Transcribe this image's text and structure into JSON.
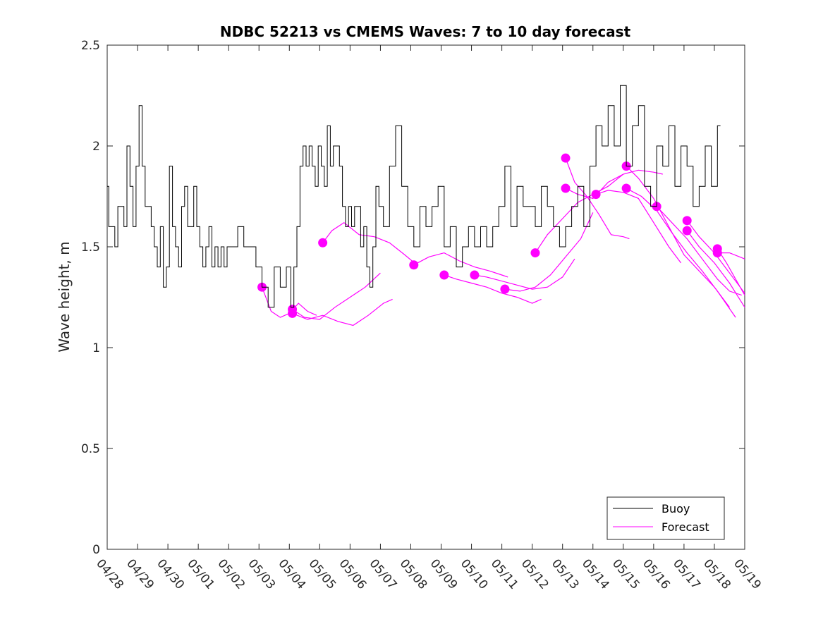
{
  "chart_data": {
    "type": "line",
    "title": "NDBC 52213 vs CMEMS Waves: 7 to 10 day forecast",
    "xlabel": "",
    "ylabel": "Wave height, m",
    "xlim": [
      "04/28",
      "05/19"
    ],
    "ylim": [
      0,
      2.5
    ],
    "x_tick_labels": [
      "04/28",
      "04/29",
      "04/30",
      "05/01",
      "05/02",
      "05/03",
      "05/04",
      "05/05",
      "05/06",
      "05/07",
      "05/08",
      "05/09",
      "05/10",
      "05/11",
      "05/12",
      "05/13",
      "05/14",
      "05/15",
      "05/16",
      "05/17",
      "05/18",
      "05/19"
    ],
    "y_ticks": [
      0,
      0.5,
      1,
      1.5,
      2,
      2.5
    ],
    "y_tick_labels": [
      "0",
      "0.5",
      "1",
      "1.5",
      "2",
      "2.5"
    ],
    "grid": false,
    "legend_position": "bottom-right",
    "colors": {
      "buoy": "#000000",
      "forecast": "#ff00ff"
    },
    "series": [
      {
        "name": "Buoy",
        "x_day_index": [
          0.0,
          0.1,
          0.2,
          0.3,
          0.4,
          0.5,
          0.6,
          0.7,
          0.8,
          0.9,
          1.0,
          1.1,
          1.2,
          1.3,
          1.4,
          1.5,
          1.6,
          1.7,
          1.8,
          1.9,
          2.0,
          2.1,
          2.2,
          2.3,
          2.4,
          2.5,
          2.6,
          2.7,
          2.8,
          2.9,
          3.0,
          3.1,
          3.2,
          3.3,
          3.4,
          3.5,
          3.6,
          3.7,
          3.8,
          3.9,
          4.0,
          4.2,
          4.4,
          4.6,
          4.8,
          5.0,
          5.2,
          5.4,
          5.6,
          5.8,
          6.0,
          6.1,
          6.2,
          6.3,
          6.4,
          6.5,
          6.6,
          6.7,
          6.8,
          6.9,
          7.0,
          7.1,
          7.2,
          7.3,
          7.4,
          7.5,
          7.6,
          7.7,
          7.8,
          7.9,
          8.0,
          8.1,
          8.2,
          8.3,
          8.4,
          8.5,
          8.6,
          8.7,
          8.8,
          8.9,
          9.0,
          9.2,
          9.4,
          9.6,
          9.8,
          10.0,
          10.2,
          10.4,
          10.6,
          10.8,
          11.0,
          11.2,
          11.4,
          11.6,
          11.8,
          12.0,
          12.2,
          12.4,
          12.6,
          12.8,
          13.0,
          13.2,
          13.4,
          13.6,
          13.8,
          14.0,
          14.2,
          14.4,
          14.6,
          14.8,
          15.0,
          15.2,
          15.4,
          15.6,
          15.8,
          16.0,
          16.2,
          16.4,
          16.6,
          16.8,
          17.0,
          17.2,
          17.4,
          17.6,
          17.8,
          18.0,
          18.2,
          18.4,
          18.6,
          18.8,
          19.0,
          19.2,
          19.4,
          19.6,
          19.8,
          20.0,
          20.2
        ],
        "values": [
          1.8,
          1.6,
          1.6,
          1.5,
          1.7,
          1.7,
          1.6,
          2.0,
          1.8,
          1.6,
          1.9,
          2.2,
          1.9,
          1.7,
          1.7,
          1.6,
          1.5,
          1.4,
          1.6,
          1.3,
          1.4,
          1.9,
          1.6,
          1.5,
          1.4,
          1.7,
          1.8,
          1.6,
          1.6,
          1.8,
          1.6,
          1.5,
          1.4,
          1.5,
          1.6,
          1.4,
          1.5,
          1.4,
          1.5,
          1.4,
          1.5,
          1.5,
          1.6,
          1.5,
          1.5,
          1.4,
          1.3,
          1.2,
          1.4,
          1.3,
          1.4,
          1.2,
          1.4,
          1.6,
          1.9,
          2.0,
          1.9,
          2.0,
          1.9,
          1.8,
          2.0,
          1.9,
          1.8,
          2.1,
          1.9,
          2.0,
          2.0,
          1.9,
          1.7,
          1.6,
          1.7,
          1.6,
          1.7,
          1.7,
          1.5,
          1.6,
          1.4,
          1.3,
          1.5,
          1.8,
          1.7,
          1.6,
          1.9,
          2.1,
          1.8,
          1.6,
          1.5,
          1.7,
          1.6,
          1.7,
          1.8,
          1.5,
          1.6,
          1.4,
          1.5,
          1.6,
          1.5,
          1.6,
          1.5,
          1.6,
          1.7,
          1.9,
          1.6,
          1.8,
          1.7,
          1.7,
          1.6,
          1.8,
          1.7,
          1.6,
          1.5,
          1.6,
          1.7,
          1.8,
          1.6,
          1.9,
          2.1,
          2.0,
          2.2,
          2.0,
          2.3,
          1.9,
          2.1,
          2.2,
          1.8,
          1.7,
          2.0,
          1.9,
          2.1,
          1.8,
          2.0,
          1.9,
          1.7,
          1.8,
          2.0,
          1.8,
          2.1,
          2.3,
          1.9
        ]
      },
      {
        "name": "Forecast",
        "runs": [
          {
            "x_day_index": [
              5.1,
              5.4,
              5.7,
              6.0,
              6.3,
              6.6,
              6.9
            ],
            "values": [
              1.3,
              1.18,
              1.15,
              1.17,
              1.22,
              1.18,
              1.16
            ]
          },
          {
            "x_day_index": [
              6.1,
              6.5,
              7.0,
              7.5,
              8.0,
              8.5,
              9.0
            ],
            "values": [
              1.19,
              1.15,
              1.14,
              1.2,
              1.25,
              1.3,
              1.37
            ]
          },
          {
            "x_day_index": [
              6.1,
              6.6,
              7.1,
              7.6,
              8.1,
              8.6,
              9.1,
              9.4
            ],
            "values": [
              1.17,
              1.14,
              1.16,
              1.13,
              1.11,
              1.16,
              1.22,
              1.24
            ]
          },
          {
            "x_day_index": [
              7.1,
              7.4,
              7.8,
              8.3,
              8.8,
              9.3,
              9.8,
              10.2
            ],
            "values": [
              1.52,
              1.58,
              1.62,
              1.56,
              1.55,
              1.52,
              1.46,
              1.41
            ]
          },
          {
            "x_day_index": [
              10.1,
              10.6,
              11.1,
              11.6,
              12.1,
              12.6,
              13.0,
              13.2
            ],
            "values": [
              1.41,
              1.45,
              1.47,
              1.43,
              1.4,
              1.38,
              1.36,
              1.35
            ]
          },
          {
            "x_day_index": [
              11.1,
              11.5,
              12.0,
              12.5,
              13.0,
              13.5,
              14.0,
              14.3
            ],
            "values": [
              1.36,
              1.34,
              1.32,
              1.3,
              1.27,
              1.25,
              1.22,
              1.24
            ]
          },
          {
            "x_day_index": [
              12.1,
              12.5,
              13.0,
              13.5,
              14.0,
              14.5,
              15.0,
              15.4
            ],
            "values": [
              1.36,
              1.35,
              1.33,
              1.31,
              1.29,
              1.3,
              1.35,
              1.44
            ]
          },
          {
            "x_day_index": [
              13.1,
              13.6,
              14.1,
              14.6,
              15.1,
              15.6,
              16.0
            ],
            "values": [
              1.29,
              1.28,
              1.3,
              1.36,
              1.45,
              1.54,
              1.67
            ]
          },
          {
            "x_day_index": [
              14.1,
              14.5,
              15.0,
              15.5,
              16.0,
              16.5,
              17.0
            ],
            "values": [
              1.47,
              1.56,
              1.64,
              1.72,
              1.76,
              1.8,
              1.86
            ]
          },
          {
            "x_day_index": [
              15.1,
              15.4,
              15.8,
              16.2,
              16.6,
              17.0,
              17.2
            ],
            "values": [
              1.94,
              1.82,
              1.75,
              1.66,
              1.56,
              1.55,
              1.54
            ]
          },
          {
            "x_day_index": [
              15.1,
              15.5,
              16.0,
              16.5,
              17.0,
              17.5,
              18.0,
              18.3
            ],
            "values": [
              1.79,
              1.76,
              1.74,
              1.82,
              1.86,
              1.88,
              1.87,
              1.86
            ]
          },
          {
            "x_day_index": [
              16.1,
              16.5,
              17.0,
              17.5,
              18.0,
              18.5,
              18.9
            ],
            "values": [
              1.76,
              1.78,
              1.77,
              1.74,
              1.62,
              1.5,
              1.42
            ]
          },
          {
            "x_day_index": [
              17.1,
              17.5,
              18.0,
              18.5,
              19.0,
              19.5,
              20.0,
              20.5
            ],
            "values": [
              1.9,
              1.84,
              1.74,
              1.6,
              1.46,
              1.38,
              1.3,
              1.2
            ]
          },
          {
            "x_day_index": [
              17.1,
              17.6,
              18.1,
              18.6,
              19.1,
              19.6,
              20.1,
              20.7
            ],
            "values": [
              1.79,
              1.75,
              1.68,
              1.57,
              1.47,
              1.38,
              1.28,
              1.15
            ]
          },
          {
            "x_day_index": [
              18.1,
              18.6,
              19.1,
              19.6,
              20.1,
              20.5,
              20.9
            ],
            "values": [
              1.7,
              1.62,
              1.54,
              1.44,
              1.34,
              1.28,
              1.26
            ]
          },
          {
            "x_day_index": [
              19.1,
              19.5,
              20.0,
              20.5,
              21.0
            ],
            "values": [
              1.63,
              1.55,
              1.47,
              1.37,
              1.27
            ]
          },
          {
            "x_day_index": [
              19.1,
              19.5,
              20.0,
              20.5,
              21.0
            ],
            "values": [
              1.58,
              1.5,
              1.42,
              1.32,
              1.2
            ]
          },
          {
            "x_day_index": [
              20.1,
              20.4,
              20.7,
              21.0
            ],
            "values": [
              1.49,
              1.42,
              1.34,
              1.26
            ]
          },
          {
            "x_day_index": [
              20.1,
              20.5,
              21.0
            ],
            "values": [
              1.47,
              1.47,
              1.44
            ]
          }
        ]
      }
    ]
  }
}
